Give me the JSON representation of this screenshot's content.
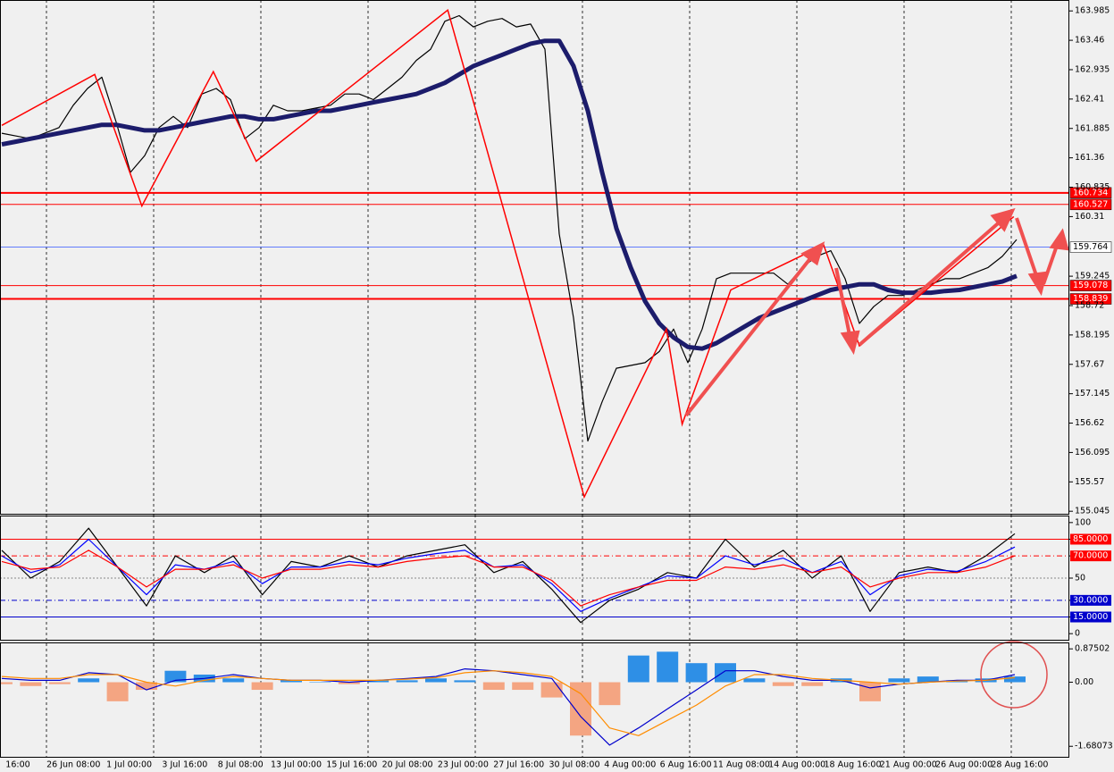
{
  "chart_data": [
    {
      "type": "line",
      "ylim": [
        155.0,
        164.18
      ],
      "yticks": [
        163.985,
        163.46,
        162.935,
        162.41,
        161.885,
        161.36,
        160.835,
        160.31,
        159.245,
        158.72,
        158.195,
        157.67,
        157.145,
        156.62,
        156.095,
        155.57,
        155.045
      ],
      "series": [
        {
          "color": "#000000",
          "width": 1.2,
          "values": [
            161.8,
            161.75,
            161.7,
            161.8,
            161.9,
            162.3,
            162.6,
            162.8,
            162.0,
            161.1,
            161.4,
            161.9,
            162.1,
            161.9,
            162.5,
            162.6,
            162.4,
            161.7,
            161.9,
            162.3,
            162.2,
            162.2,
            162.25,
            162.3,
            162.5,
            162.5,
            162.4,
            162.6,
            162.8,
            163.1,
            163.3,
            163.8,
            163.9,
            163.7,
            163.8,
            163.85,
            163.7,
            163.75,
            163.3,
            160.0,
            158.5,
            156.3,
            157.0,
            157.6,
            157.65,
            157.7,
            157.9,
            158.3,
            157.7,
            158.3,
            159.2,
            159.3,
            159.3,
            159.3,
            159.3,
            159.1,
            159.4,
            159.6,
            159.7,
            159.2,
            158.4,
            158.7,
            158.9,
            158.9,
            159.0,
            159.1,
            159.2,
            159.2,
            159.3,
            159.4,
            159.6,
            159.9
          ]
        },
        {
          "color": "#1c1c6b",
          "width": 5,
          "values": [
            161.6,
            161.65,
            161.7,
            161.75,
            161.8,
            161.85,
            161.9,
            161.95,
            161.95,
            161.9,
            161.85,
            161.85,
            161.9,
            161.95,
            162.0,
            162.05,
            162.1,
            162.1,
            162.05,
            162.05,
            162.1,
            162.15,
            162.2,
            162.2,
            162.25,
            162.3,
            162.35,
            162.4,
            162.45,
            162.5,
            162.6,
            162.7,
            162.85,
            163.0,
            163.1,
            163.2,
            163.3,
            163.4,
            163.45,
            163.45,
            163.0,
            162.2,
            161.1,
            160.1,
            159.4,
            158.8,
            158.4,
            158.15,
            157.98,
            157.95,
            158.05,
            158.2,
            158.35,
            158.5,
            158.6,
            158.7,
            158.8,
            158.9,
            159.0,
            159.05,
            159.1,
            159.1,
            159.0,
            158.95,
            158.95,
            158.95,
            158.98,
            159.0,
            159.05,
            159.1,
            159.15,
            159.25
          ]
        }
      ],
      "zigzag": {
        "color": "#ff0000",
        "x": [
          0,
          6.5,
          9.8,
          14.8,
          17.8,
          31.2,
          40.75,
          46.5,
          47.6,
          51,
          57.5,
          60,
          70.8
        ],
        "values": [
          161.94,
          162.85,
          160.5,
          162.9,
          161.3,
          164.0,
          155.3,
          158.3,
          156.6,
          159.0,
          159.8,
          158.0,
          160.31
        ]
      },
      "levels": [
        {
          "value": 160.734,
          "color": "#ff0000",
          "width": 2
        },
        {
          "value": 160.527,
          "color": "#ff0000",
          "width": 1
        },
        {
          "value": 159.764,
          "color": "#3355ff",
          "width": 0.8
        },
        {
          "value": 159.078,
          "color": "#ff0000",
          "width": 1
        },
        {
          "value": 158.839,
          "color": "#ff0000",
          "width": 2
        }
      ]
    },
    {
      "type": "line",
      "ylim": [
        -5.5,
        105.5
      ],
      "yticks": [
        100,
        {
          "value": 85,
          "label": "85.0000"
        },
        {
          "value": 70,
          "label": "70.0000"
        },
        50,
        {
          "value": 30,
          "label": "30.0000"
        },
        {
          "value": 15,
          "label": "15.0000"
        },
        0
      ],
      "levels": [
        {
          "value": 85,
          "color": "#ff0000",
          "dash": "none"
        },
        {
          "value": 70,
          "color": "#ff0000",
          "dash": "6 3 1 3"
        },
        {
          "value": 50,
          "color": "#888888",
          "dash": "2 2"
        },
        {
          "value": 30,
          "color": "#0000cc",
          "dash": "6 3 1 3"
        },
        {
          "value": 15,
          "color": "#0000cc",
          "dash": "none"
        }
      ],
      "series": [
        {
          "color": "#000000",
          "values": [
            75,
            50,
            65,
            95,
            60,
            25,
            70,
            55,
            70,
            35,
            65,
            60,
            70,
            60,
            70,
            75,
            80,
            55,
            65,
            40,
            10,
            30,
            40,
            55,
            50,
            85,
            60,
            75,
            50,
            70,
            20,
            55,
            60,
            55,
            70,
            90
          ]
        },
        {
          "color": "#0000ff",
          "values": [
            70,
            55,
            62,
            85,
            60,
            35,
            62,
            58,
            65,
            45,
            60,
            60,
            65,
            62,
            68,
            72,
            75,
            60,
            62,
            45,
            20,
            32,
            42,
            52,
            50,
            70,
            62,
            68,
            55,
            65,
            35,
            52,
            58,
            56,
            65,
            78
          ]
        },
        {
          "color": "#ff0000",
          "values": [
            65,
            58,
            60,
            75,
            60,
            42,
            58,
            58,
            62,
            50,
            58,
            58,
            62,
            60,
            65,
            68,
            70,
            60,
            60,
            48,
            25,
            35,
            42,
            48,
            48,
            60,
            58,
            62,
            55,
            60,
            42,
            50,
            55,
            55,
            60,
            70
          ]
        }
      ]
    },
    {
      "type": "bar",
      "ylim": [
        -1.98,
        1.02
      ],
      "yticks": [
        0.87502,
        {
          "value": 0,
          "label": "0.00"
        },
        -1.68073
      ],
      "series": [
        {
          "type": "bar",
          "color": "#2e8fe6",
          "negative_color": "#f4a582",
          "values": [
            -0.05,
            -0.1,
            -0.05,
            0.1,
            -0.5,
            -0.2,
            0.3,
            0.2,
            0.1,
            -0.2,
            0.05,
            0.0,
            -0.05,
            0.05,
            0.05,
            0.1,
            0.05,
            -0.2,
            -0.2,
            -0.4,
            -1.4,
            -0.6,
            0.7,
            0.8,
            0.5,
            0.5,
            0.1,
            -0.1,
            -0.1,
            0.1,
            -0.5,
            0.1,
            0.15,
            0.05,
            0.1,
            0.15
          ]
        },
        {
          "type": "line",
          "color": "#0000cc",
          "values": [
            0.1,
            0.05,
            0.05,
            0.25,
            0.2,
            -0.2,
            0.05,
            0.1,
            0.2,
            0.1,
            0.05,
            0.05,
            0.0,
            0.05,
            0.1,
            0.15,
            0.35,
            0.3,
            0.2,
            0.1,
            -0.9,
            -1.65,
            -1.2,
            -0.7,
            -0.2,
            0.3,
            0.3,
            0.15,
            0.05,
            0.05,
            -0.15,
            -0.05,
            0.0,
            0.05,
            0.05,
            0.2
          ]
        },
        {
          "type": "line",
          "color": "#ff8c00",
          "values": [
            0.15,
            0.1,
            0.1,
            0.2,
            0.2,
            0.0,
            -0.1,
            0.05,
            0.15,
            0.1,
            0.05,
            0.05,
            0.05,
            0.05,
            0.08,
            0.12,
            0.25,
            0.3,
            0.25,
            0.15,
            -0.3,
            -1.2,
            -1.4,
            -1.0,
            -0.6,
            -0.1,
            0.2,
            0.2,
            0.1,
            0.05,
            0.0,
            -0.05,
            0.0,
            0.03,
            0.05,
            0.12
          ]
        }
      ],
      "xtick_labels": [
        "16:00",
        "26 Jun 08:00",
        "1 Jul 00:00",
        "3 Jul 16:00",
        "8 Jul 08:00",
        "13 Jul 00:00",
        "15 Jul 16:00",
        "20 Jul 08:00",
        "23 Jul 00:00",
        "27 Jul 16:00",
        "30 Jul 08:00",
        "4 Aug 00:00",
        "6 Aug 16:00",
        "11 Aug 08:00",
        "14 Aug 00:00",
        "18 Aug 16:00",
        "21 Aug 00:00",
        "26 Aug 00:00",
        "28 Aug 16:00"
      ]
    }
  ]
}
